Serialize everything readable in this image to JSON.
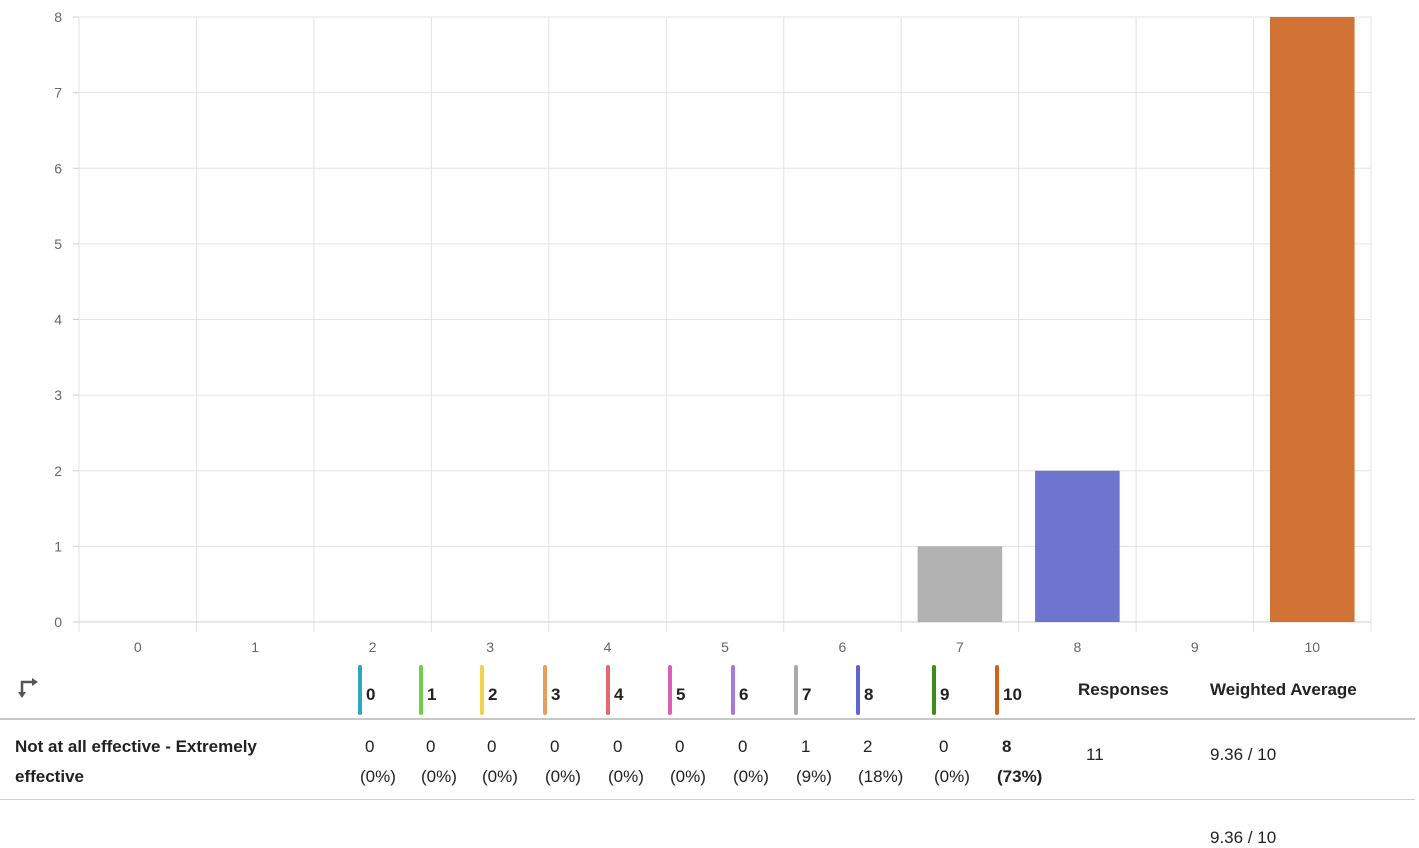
{
  "chart_data": {
    "type": "bar",
    "categories": [
      "0",
      "1",
      "2",
      "3",
      "4",
      "5",
      "6",
      "7",
      "8",
      "9",
      "10"
    ],
    "values": [
      0,
      0,
      0,
      0,
      0,
      0,
      0,
      1,
      2,
      0,
      8
    ],
    "colors": [
      "#2ca8c2",
      "#6fcf4b",
      "#f2d34f",
      "#e89c5e",
      "#e9686b",
      "#d95fb9",
      "#a978d8",
      "#a9a9a9",
      "#5e66c9",
      "#3f8c1b",
      "#cd6420"
    ],
    "ylim": [
      0,
      8
    ],
    "yticks": [
      0,
      1,
      2,
      3,
      4,
      5,
      6,
      7,
      8
    ],
    "grid": true
  },
  "table": {
    "swap_icon": "swap-arrows-icon",
    "columns": [
      {
        "label": "0",
        "color": "#2ca8c2"
      },
      {
        "label": "1",
        "color": "#6fcf4b"
      },
      {
        "label": "2",
        "color": "#f2d34f"
      },
      {
        "label": "3",
        "color": "#e89c5e"
      },
      {
        "label": "4",
        "color": "#e9686b"
      },
      {
        "label": "5",
        "color": "#d95fb9"
      },
      {
        "label": "6",
        "color": "#a978d8"
      },
      {
        "label": "7",
        "color": "#a9a9a9"
      },
      {
        "label": "8",
        "color": "#5e66c9"
      },
      {
        "label": "9",
        "color": "#3f8c1b"
      },
      {
        "label": "10",
        "color": "#cd6420"
      }
    ],
    "responses_header": "Responses",
    "average_header": "Weighted Average",
    "row": {
      "label": "Not at all effective - Extremely effective",
      "cells": [
        {
          "count": "0",
          "pct": "(0%)"
        },
        {
          "count": "0",
          "pct": "(0%)"
        },
        {
          "count": "0",
          "pct": "(0%)"
        },
        {
          "count": "0",
          "pct": "(0%)"
        },
        {
          "count": "0",
          "pct": "(0%)"
        },
        {
          "count": "0",
          "pct": "(0%)"
        },
        {
          "count": "0",
          "pct": "(0%)"
        },
        {
          "count": "1",
          "pct": "(9%)"
        },
        {
          "count": "2",
          "pct": "(18%)"
        },
        {
          "count": "0",
          "pct": "(0%)"
        },
        {
          "count": "8",
          "pct": "(73%)"
        }
      ],
      "responses": "11",
      "average": "9.36 / 10"
    },
    "total_average": "9.36 / 10"
  }
}
